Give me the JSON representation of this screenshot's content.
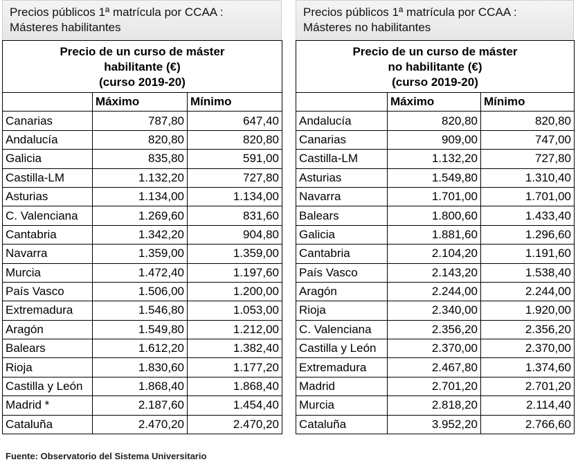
{
  "left": {
    "caption": [
      "Precios públicos 1ª matrícula por CCAA :",
      "Másteres habilitantes"
    ],
    "table_title": [
      "Precio de un curso de máster",
      "habilitante (€)",
      "(curso 2019-20)"
    ],
    "columns": [
      "",
      "Máximo",
      "Mínimo"
    ],
    "rows": [
      [
        "Canarias",
        "787,80",
        "647,40"
      ],
      [
        "Andalucía",
        "820,80",
        "820,80"
      ],
      [
        "Galicia",
        "835,80",
        "591,00"
      ],
      [
        "Castilla-LM",
        "1.132,20",
        "727,80"
      ],
      [
        "Asturias",
        "1.134,00",
        "1.134,00"
      ],
      [
        "C. Valenciana",
        "1.269,60",
        "831,60"
      ],
      [
        "Cantabria",
        "1.342,20",
        "904,80"
      ],
      [
        "Navarra",
        "1.359,00",
        "1.359,00"
      ],
      [
        "Murcia",
        "1.472,40",
        "1.197,60"
      ],
      [
        "País Vasco",
        "1.506,00",
        "1.200,00"
      ],
      [
        "Extremadura",
        "1.546,80",
        "1.053,00"
      ],
      [
        "Aragón",
        "1.549,80",
        "1.212,00"
      ],
      [
        "Balears",
        "1.612,20",
        "1.382,40"
      ],
      [
        "Rioja",
        "1.830,60",
        "1.177,20"
      ],
      [
        "Castilla y León",
        "1.868,40",
        "1.868,40"
      ],
      [
        "Madrid *",
        "2.187,60",
        "1.454,40"
      ],
      [
        "Cataluña",
        "2.470,20",
        "2.470,20"
      ]
    ]
  },
  "right": {
    "caption": [
      "Precios públicos 1ª matrícula por CCAA :",
      "Másteres no habilitantes"
    ],
    "table_title": [
      "Precio de un curso de máster",
      "no habilitante (€)",
      "(curso 2019-20)"
    ],
    "columns": [
      "",
      "Máximo",
      "Mínimo"
    ],
    "rows": [
      [
        "Andalucía",
        "820,80",
        "820,80"
      ],
      [
        "Canarias",
        "909,00",
        "747,00"
      ],
      [
        "Castilla-LM",
        "1.132,20",
        "727,80"
      ],
      [
        "Asturias",
        "1.549,80",
        "1.310,40"
      ],
      [
        "Navarra",
        "1.701,00",
        "1.701,00"
      ],
      [
        "Balears",
        "1.800,60",
        "1.433,40"
      ],
      [
        "Galicia",
        "1.881,60",
        "1.296,60"
      ],
      [
        "Cantabria",
        "2.104,20",
        "1.191,60"
      ],
      [
        "País Vasco",
        "2.143,20",
        "1.538,40"
      ],
      [
        "Aragón",
        "2.244,00",
        "2.244,00"
      ],
      [
        "Rioja",
        "2.340,00",
        "1.920,00"
      ],
      [
        "C. Valenciana",
        "2.356,20",
        "2.356,20"
      ],
      [
        "Castilla y León",
        "2.370,00",
        "2.370,00"
      ],
      [
        "Extremadura",
        "2.467,80",
        "1.374,60"
      ],
      [
        "Madrid",
        "2.701,20",
        "2.701,20"
      ],
      [
        "Murcia",
        "2.818,20",
        "2.114,40"
      ],
      [
        "Cataluña",
        "3.952,20",
        "2.766,60"
      ]
    ]
  },
  "source": "Fuente: Observatorio del Sistema Universitario"
}
